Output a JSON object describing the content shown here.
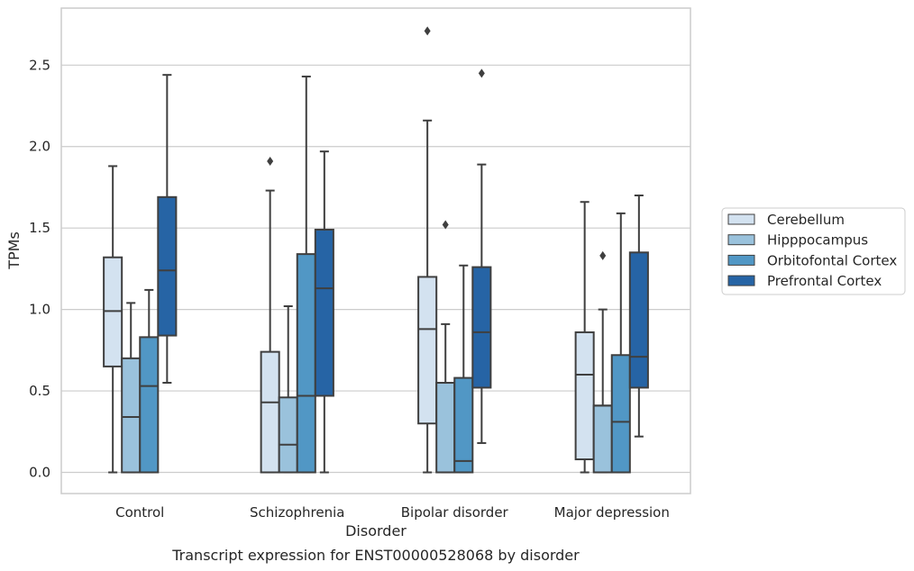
{
  "chart_data": {
    "type": "boxplot",
    "title": "",
    "caption": "Transcript expression for ENST00000528068 by disorder",
    "xlabel": "Disorder",
    "ylabel": "TPMs",
    "ylim": [
      -0.13,
      2.85
    ],
    "yticks": [
      "0.0",
      "0.5",
      "1.0",
      "1.5",
      "2.0",
      "2.5"
    ],
    "grid": true,
    "legend_position": "right",
    "categories": [
      "Control",
      "Schizophrenia",
      "Bipolar disorder",
      "Major depression"
    ],
    "series": [
      {
        "name": "Cerebellum",
        "color": "#d3e2f0",
        "boxes": [
          {
            "whisker_low": 0.0,
            "q1": 0.65,
            "median": 0.99,
            "q3": 1.32,
            "whisker_high": 1.88,
            "outliers": []
          },
          {
            "whisker_low": 0.0,
            "q1": 0.0,
            "median": 0.43,
            "q3": 0.74,
            "whisker_high": 1.73,
            "outliers": [
              1.91
            ]
          },
          {
            "whisker_low": 0.0,
            "q1": 0.3,
            "median": 0.88,
            "q3": 1.2,
            "whisker_high": 2.16,
            "outliers": [
              2.71
            ]
          },
          {
            "whisker_low": 0.0,
            "q1": 0.08,
            "median": 0.6,
            "q3": 0.86,
            "whisker_high": 1.66,
            "outliers": []
          }
        ]
      },
      {
        "name": "Hipppocampus",
        "color": "#9ac2dc",
        "boxes": [
          {
            "whisker_low": 0.0,
            "q1": 0.0,
            "median": 0.34,
            "q3": 0.7,
            "whisker_high": 1.04,
            "outliers": []
          },
          {
            "whisker_low": 0.0,
            "q1": 0.0,
            "median": 0.17,
            "q3": 0.46,
            "whisker_high": 1.02,
            "outliers": []
          },
          {
            "whisker_low": 0.0,
            "q1": 0.0,
            "median": 0.55,
            "q3": 0.55,
            "whisker_high": 0.91,
            "outliers": [
              1.52
            ]
          },
          {
            "whisker_low": 0.0,
            "q1": 0.0,
            "median": 0.41,
            "q3": 0.41,
            "whisker_high": 1.0,
            "outliers": [
              1.33
            ]
          }
        ]
      },
      {
        "name": "Orbitofontal Cortex",
        "color": "#5197c5",
        "boxes": [
          {
            "whisker_low": 0.0,
            "q1": 0.0,
            "median": 0.53,
            "q3": 0.83,
            "whisker_high": 1.12,
            "outliers": []
          },
          {
            "whisker_low": 0.0,
            "q1": 0.0,
            "median": 0.47,
            "q3": 1.34,
            "whisker_high": 2.43,
            "outliers": []
          },
          {
            "whisker_low": 0.0,
            "q1": 0.0,
            "median": 0.07,
            "q3": 0.58,
            "whisker_high": 1.27,
            "outliers": []
          },
          {
            "whisker_low": 0.0,
            "q1": 0.0,
            "median": 0.31,
            "q3": 0.72,
            "whisker_high": 1.59,
            "outliers": []
          }
        ]
      },
      {
        "name": "Prefrontal Cortex",
        "color": "#2664a5",
        "boxes": [
          {
            "whisker_low": 0.55,
            "q1": 0.84,
            "median": 1.24,
            "q3": 1.69,
            "whisker_high": 2.44,
            "outliers": []
          },
          {
            "whisker_low": 0.0,
            "q1": 0.47,
            "median": 1.13,
            "q3": 1.49,
            "whisker_high": 1.97,
            "outliers": []
          },
          {
            "whisker_low": 0.18,
            "q1": 0.52,
            "median": 0.86,
            "q3": 1.26,
            "whisker_high": 1.89,
            "outliers": [
              2.45
            ]
          },
          {
            "whisker_low": 0.22,
            "q1": 0.52,
            "median": 0.71,
            "q3": 1.35,
            "whisker_high": 1.7,
            "outliers": []
          }
        ]
      }
    ],
    "colors": {
      "edge": "#3f3f3f",
      "grid": "#cccccc",
      "frame": "#cccccc",
      "text": "#262626"
    }
  }
}
